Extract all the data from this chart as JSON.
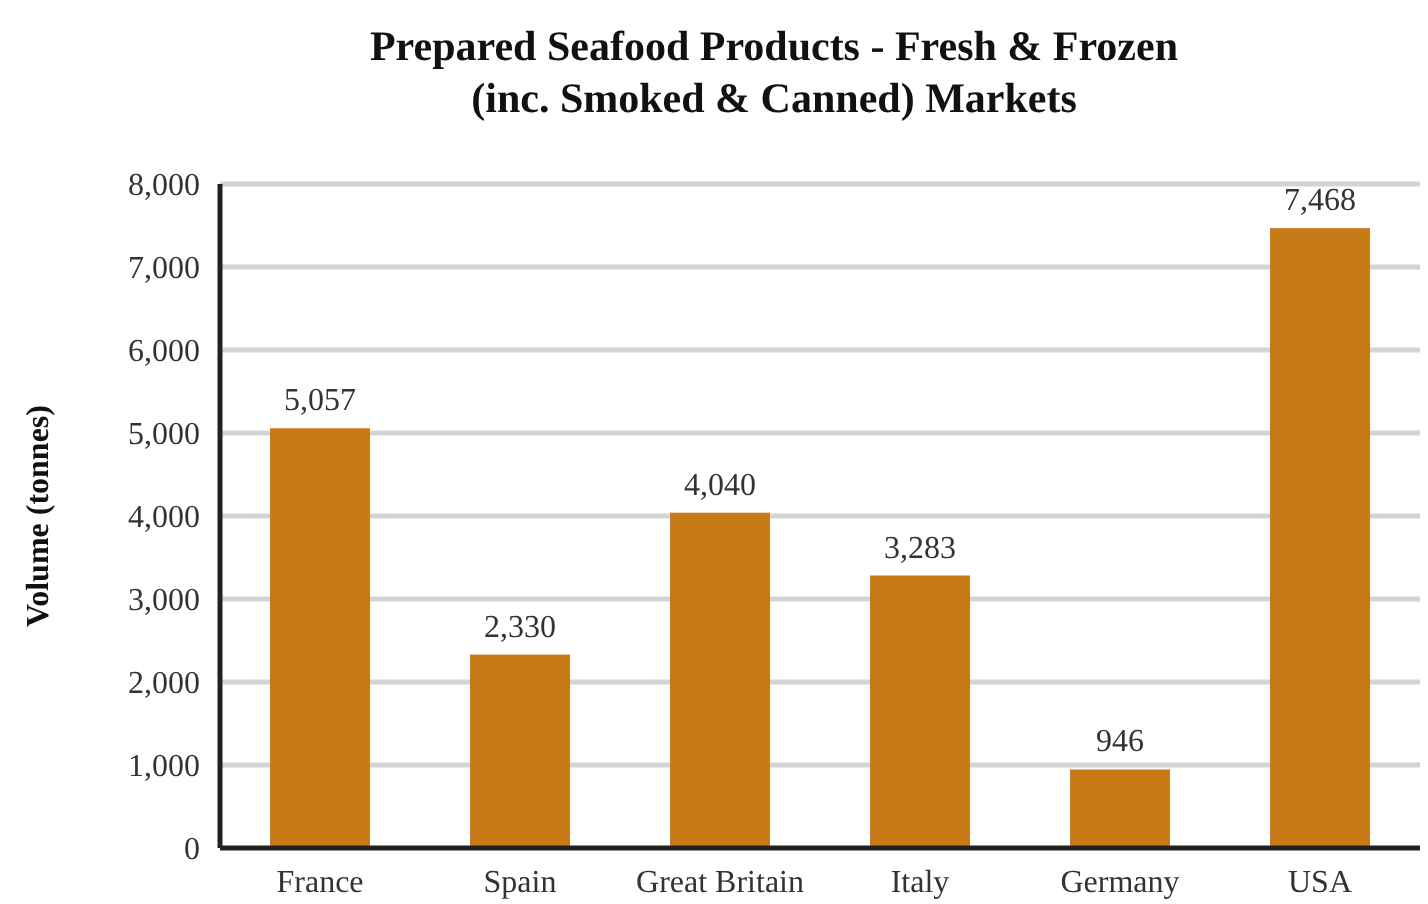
{
  "chart_data": {
    "type": "bar",
    "title": "Prepared Seafood Products - Fresh & Frozen\n(inc. Smoked & Canned) Markets",
    "ylabel": "Volume (tonnes)",
    "categories": [
      "France",
      "Spain",
      "Great Britain",
      "Italy",
      "Germany",
      "USA"
    ],
    "values": [
      5057,
      2330,
      4040,
      3283,
      946,
      7468
    ],
    "value_labels": [
      "5,057",
      "2,330",
      "4,040",
      "3,283",
      "946",
      "7,468"
    ],
    "color": "#c97a18",
    "ylim": [
      0,
      8000
    ],
    "yticks": [
      0,
      {
        "value": 1000,
        "label": "1,000"
      },
      {
        "value": 2000,
        "label": "2,000"
      },
      {
        "value": 3000,
        "label": "3,000"
      },
      {
        "value": 4000,
        "label": "4,000"
      },
      {
        "value": 5000,
        "label": "5,000"
      },
      {
        "value": 6000,
        "label": "6,000"
      },
      {
        "value": 7000,
        "label": "7,000"
      },
      {
        "value": 8000,
        "label": "8,000"
      }
    ],
    "grid": "y"
  }
}
